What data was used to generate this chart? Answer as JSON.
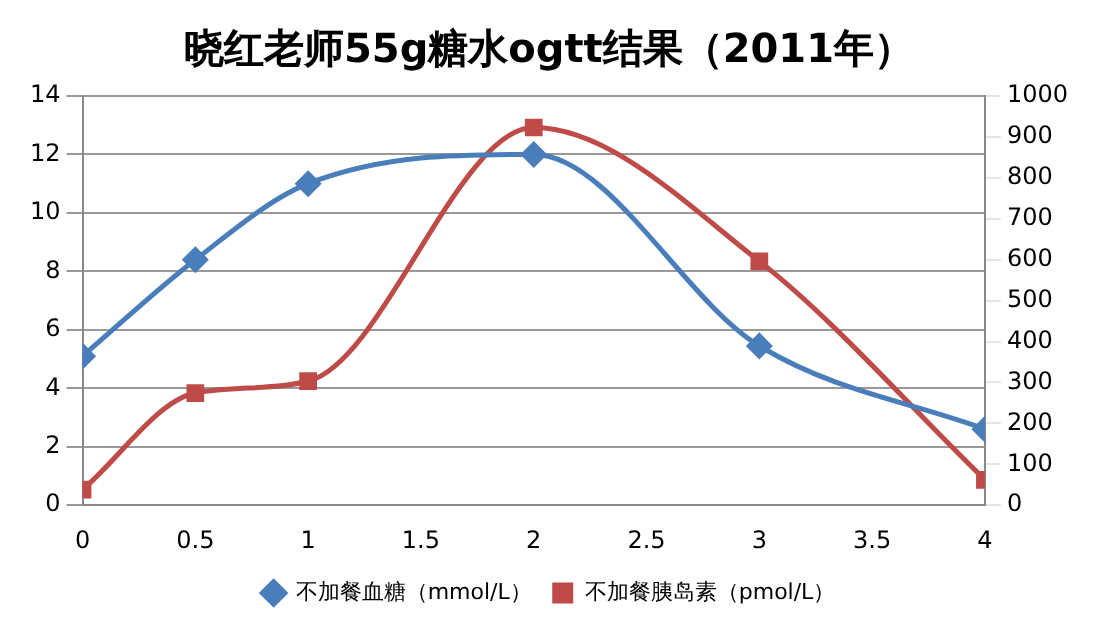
{
  "chart_data": {
    "type": "line",
    "title": "晓红老师55g糖水ogtt结果（2011年）",
    "x": [
      0,
      0.5,
      1,
      2,
      3,
      4
    ],
    "xlim": [
      0,
      4
    ],
    "xticks": [
      0,
      0.5,
      1,
      1.5,
      2,
      2.5,
      3,
      3.5,
      4
    ],
    "ylim": [
      0,
      14
    ],
    "yticks": [
      0,
      2,
      4,
      6,
      8,
      10,
      12,
      14
    ],
    "y2lim": [
      0,
      1000
    ],
    "y2ticks": [
      0,
      100,
      200,
      300,
      400,
      500,
      600,
      700,
      800,
      900,
      1000
    ],
    "grid": "y",
    "legend": "bottom",
    "series": [
      {
        "name": "不加餐血糖（mmol/L）",
        "color": "#4a7ebb",
        "marker": "diamond",
        "values": [
          5.1,
          8.4,
          11.0,
          12.0,
          5.45,
          2.6
        ]
      },
      {
        "name": "不加餐胰岛素（pmol/L）",
        "color": "#be4b48",
        "marker": "square",
        "axis": "y2",
        "values": [
          38,
          274,
          303,
          923,
          596,
          62
        ]
      }
    ]
  }
}
